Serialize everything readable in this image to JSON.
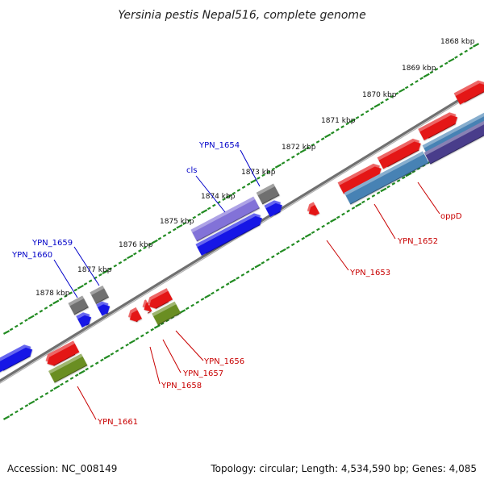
{
  "title": "Yersinia pestis Nepal516, complete genome",
  "footer": {
    "accession": "Accession: NC_008149",
    "topology": "Topology: circular; Length: 4,534,590 bp; Genes: 4,085"
  },
  "colors": {
    "backbone": "#8a8a8a",
    "dots": "#228b22",
    "label_forward": "#0000c8",
    "label_reverse": "#c80000",
    "label_line_forward": "#0000c8",
    "label_line_reverse": "#c80000"
  },
  "ticks": [
    "1868 kbp",
    "1869 kbp",
    "1870 kbp",
    "1871 kbp",
    "1872 kbp",
    "1873 kbp",
    "1874 kbp",
    "1875 kbp",
    "1876 kbp",
    "1877 kbp",
    "1878 kbp"
  ],
  "gene_labels": [
    {
      "text": "YPN_1654",
      "strand": "forward"
    },
    {
      "text": "cls",
      "strand": "forward"
    },
    {
      "text": "YPN_1659",
      "strand": "forward"
    },
    {
      "text": "YPN_1660",
      "strand": "forward"
    },
    {
      "text": "oppD",
      "strand": "reverse"
    },
    {
      "text": "YPN_1652",
      "strand": "reverse"
    },
    {
      "text": "YPN_1653",
      "strand": "reverse"
    },
    {
      "text": "YPN_1656",
      "strand": "reverse"
    },
    {
      "text": "YPN_1657",
      "strand": "reverse"
    },
    {
      "text": "YPN_1658",
      "strand": "reverse"
    },
    {
      "text": "YPN_1661",
      "strand": "reverse"
    }
  ],
  "feature_colors": {
    "red": "#e41414",
    "blue": "#1414e6",
    "gray": "#707070",
    "olive": "#6b8e23",
    "purple": "#8272d8",
    "steel": "#4682b4",
    "darkpurple": "#483d8b"
  }
}
